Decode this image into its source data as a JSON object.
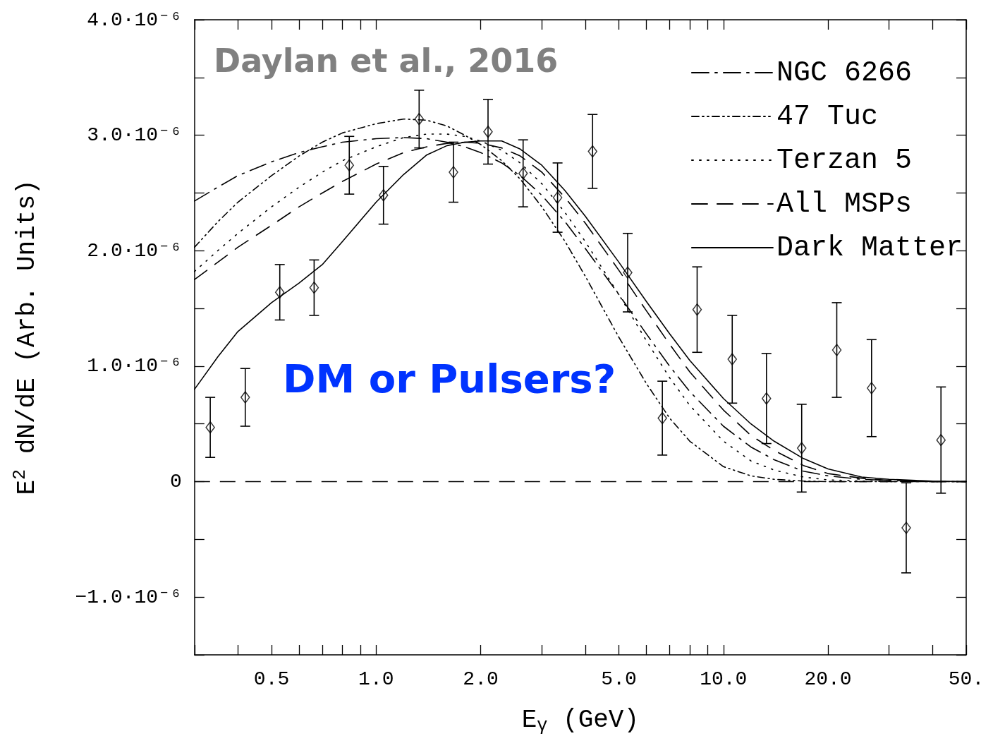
{
  "chart_data": {
    "type": "line",
    "xlabel": "E$_{γ}$ (GeV)",
    "ylabel": "E$^{2}$ dN/dE (Arb. Units)",
    "annotations": [
      "Daylan et al., 2016",
      "DM or Pulsers?"
    ],
    "log": "x",
    "grid": false,
    "legend": "top right",
    "xlim": [
      0.3,
      50
    ],
    "ylim": [
      -1.5e-06,
      4e-06
    ],
    "xticks": [
      {
        "value": 0.3,
        "label": null
      },
      {
        "value": 0.4,
        "label": null
      },
      {
        "value": 0.5,
        "label": "0.5"
      },
      {
        "value": 0.6,
        "label": null
      },
      {
        "value": 0.7,
        "label": null
      },
      {
        "value": 0.8,
        "label": null
      },
      {
        "value": 0.9,
        "label": null
      },
      {
        "value": 1,
        "label": "1.0"
      },
      {
        "value": 2,
        "label": "2.0"
      },
      {
        "value": 3,
        "label": null
      },
      {
        "value": 4,
        "label": null
      },
      {
        "value": 5,
        "label": "5.0"
      },
      {
        "value": 6,
        "label": null
      },
      {
        "value": 7,
        "label": null
      },
      {
        "value": 8,
        "label": null
      },
      {
        "value": 9,
        "label": null
      },
      {
        "value": 10,
        "label": "10.0"
      },
      {
        "value": 20,
        "label": "20.0"
      },
      {
        "value": 30,
        "label": null
      },
      {
        "value": 40,
        "label": null
      },
      {
        "value": 50,
        "label": "50."
      }
    ],
    "yticks": [
      {
        "value": -1.5e-06,
        "label": null
      },
      {
        "value": -1e-06,
        "label": "−1.0·10⁻⁶"
      },
      {
        "value": -5e-07,
        "label": null
      },
      {
        "value": 0,
        "label": "0"
      },
      {
        "value": 5e-07,
        "label": null
      },
      {
        "value": 1e-06,
        "label": "1.0·10⁻⁶"
      },
      {
        "value": 1.5e-06,
        "label": null
      },
      {
        "value": 2e-06,
        "label": "2.0·10⁻⁶"
      },
      {
        "value": 2.5e-06,
        "label": null
      },
      {
        "value": 3e-06,
        "label": "3.0·10⁻⁶"
      },
      {
        "value": 3.5e-06,
        "label": null
      },
      {
        "value": 4e-06,
        "label": "4.0·10⁻⁶"
      }
    ],
    "ref_lines": [
      {
        "axis": "y",
        "value": 0,
        "line_style": "dashed",
        "color": "#000000"
      }
    ],
    "x": [
      0.3,
      0.35,
      0.4,
      0.5,
      0.6,
      0.7,
      0.8,
      1.0,
      1.2,
      1.4,
      1.6,
      1.8,
      2.0,
      2.3,
      2.6,
      3.0,
      3.5,
      4.0,
      5.0,
      6.0,
      7.0,
      8.0,
      10,
      12,
      14,
      17,
      20,
      25,
      30,
      40,
      50
    ],
    "series": [
      {
        "name": "NGC 6266",
        "color": "#000000",
        "line_style": "dashdot",
        "marker": "none",
        "values": [
          2.43e-06,
          2.55e-06,
          2.65e-06,
          2.77e-06,
          2.85e-06,
          2.9e-06,
          2.94e-06,
          2.97e-06,
          2.98e-06,
          2.97e-06,
          2.94e-06,
          2.9e-06,
          2.85e-06,
          2.76e-06,
          2.65e-06,
          2.48e-06,
          2.25e-06,
          2.02e-06,
          1.62e-06,
          1.28e-06,
          1e-06,
          7.8e-07,
          4.8e-07,
          3e-07,
          1.9e-07,
          9e-08,
          5e-08,
          2e-08,
          1e-08,
          0,
          0
        ]
      },
      {
        "name": "47 Tuc",
        "color": "#000000",
        "line_style": "dashdotdot",
        "marker": "none",
        "values": [
          2.03e-06,
          2.25e-06,
          2.42e-06,
          2.65e-06,
          2.82e-06,
          2.94e-06,
          3.02e-06,
          3.1e-06,
          3.14e-06,
          3.13e-06,
          3.08e-06,
          3e-06,
          2.92e-06,
          2.78e-06,
          2.62e-06,
          2.38e-06,
          2.08e-06,
          1.78e-06,
          1.25e-06,
          8.5e-07,
          5.5e-07,
          3.5e-07,
          1.3e-07,
          5e-08,
          2e-08,
          5e-09,
          0,
          0,
          0,
          0,
          0
        ]
      },
      {
        "name": "Terzan 5",
        "color": "#000000",
        "line_style": "dotted",
        "marker": "none",
        "values": [
          1.82e-06,
          2e-06,
          2.15e-06,
          2.38e-06,
          2.55e-06,
          2.68e-06,
          2.78e-06,
          2.9e-06,
          2.98e-06,
          3.01e-06,
          3.01e-06,
          2.99e-06,
          2.95e-06,
          2.87e-06,
          2.76e-06,
          2.58e-06,
          2.33e-06,
          2.08e-06,
          1.62e-06,
          1.22e-06,
          9e-07,
          6.6e-07,
          3.5e-07,
          1.8e-07,
          1e-07,
          4e-08,
          1.5e-08,
          5e-09,
          0,
          0,
          0
        ]
      },
      {
        "name": "All MSPs",
        "color": "#000000",
        "line_style": "dashed",
        "marker": "none",
        "values": [
          1.75e-06,
          1.9e-06,
          2.03e-06,
          2.22e-06,
          2.38e-06,
          2.5e-06,
          2.6e-06,
          2.75e-06,
          2.85e-06,
          2.9e-06,
          2.93e-06,
          2.94e-06,
          2.93e-06,
          2.89e-06,
          2.82e-06,
          2.68e-06,
          2.46e-06,
          2.24e-06,
          1.83e-06,
          1.48e-06,
          1.19e-06,
          9.5e-07,
          6.2e-07,
          4e-07,
          2.7e-07,
          1.4e-07,
          7e-08,
          3e-08,
          1e-08,
          0,
          0
        ]
      },
      {
        "name": "Dark Matter",
        "color": "#000000",
        "line_style": "solid",
        "marker": "none",
        "values": [
          8e-07,
          1.08e-06,
          1.3e-06,
          1.55e-06,
          1.72e-06,
          1.88e-06,
          2.08e-06,
          2.42e-06,
          2.66e-06,
          2.83e-06,
          2.91e-06,
          2.94e-06,
          2.95e-06,
          2.95e-06,
          2.88e-06,
          2.74e-06,
          2.52e-06,
          2.3e-06,
          1.9e-06,
          1.56e-06,
          1.28e-06,
          1.05e-06,
          7.2e-07,
          5e-07,
          3.5e-07,
          2e-07,
          1.1e-07,
          4e-08,
          2e-08,
          5e-09,
          0
        ]
      },
      {
        "type": "scatter",
        "color": "#000000",
        "marker": "diamond",
        "x": [
          0.333,
          0.42,
          0.528,
          0.663,
          0.837,
          1.05,
          1.33,
          1.67,
          2.1,
          2.65,
          3.33,
          4.2,
          5.3,
          6.67,
          8.4,
          10.6,
          13.3,
          16.8,
          21.2,
          26.7,
          33.6,
          42.3
        ],
        "values": [
          4.7e-07,
          7.3e-07,
          1.64e-06,
          1.68e-06,
          2.74e-06,
          2.48e-06,
          3.14e-06,
          2.68e-06,
          3.03e-06,
          2.67e-06,
          2.46e-06,
          2.86e-06,
          1.81e-06,
          5.5e-07,
          1.49e-06,
          1.06e-06,
          7.2e-07,
          2.9e-07,
          1.14e-06,
          8.1e-07,
          -4e-07,
          3.6e-07
        ],
        "errors": [
          2.6e-07,
          2.5e-07,
          2.4e-07,
          2.4e-07,
          2.5e-07,
          2.5e-07,
          2.5e-07,
          2.6e-07,
          2.8e-07,
          2.9e-07,
          3e-07,
          3.2e-07,
          3.4e-07,
          3.2e-07,
          3.7e-07,
          3.8e-07,
          3.9e-07,
          3.8e-07,
          4.1e-07,
          4.2e-07,
          3.9e-07,
          4.6e-07
        ]
      }
    ]
  }
}
